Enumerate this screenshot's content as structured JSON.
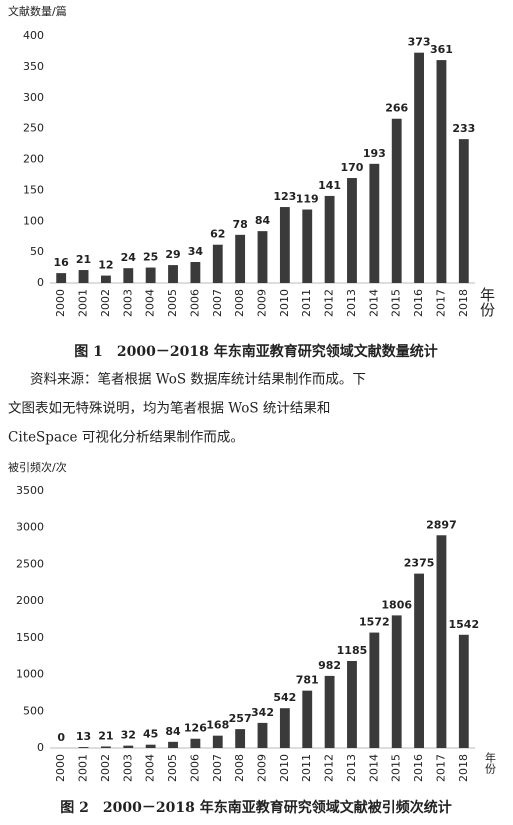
{
  "chart_data": [
    {
      "type": "bar",
      "title": "图 1　2000－2018 年东南亚教育研究领域文献数量统计",
      "y_label": "文献数量/篇",
      "x_label": "年份",
      "categories": [
        "2000",
        "2001",
        "2002",
        "2003",
        "2004",
        "2005",
        "2006",
        "2007",
        "2008",
        "2009",
        "2010",
        "2011",
        "2012",
        "2013",
        "2014",
        "2015",
        "2016",
        "2017",
        "2018"
      ],
      "values": [
        16,
        21,
        12,
        24,
        25,
        29,
        34,
        62,
        78,
        84,
        123,
        119,
        141,
        170,
        193,
        266,
        373,
        361,
        233
      ],
      "color": "#3a3a3a",
      "ylim": [
        0,
        400
      ],
      "yticks": [
        0,
        50,
        100,
        150,
        200,
        250,
        300,
        350,
        400
      ]
    },
    {
      "type": "bar",
      "title": "图 2　2000－2018 年东南亚教育研究领域文献被引频次统计",
      "y_label": "被引频次/次",
      "x_label": "年份",
      "categories": [
        "2000",
        "2001",
        "2002",
        "2003",
        "2004",
        "2005",
        "2006",
        "2007",
        "2008",
        "2009",
        "2010",
        "2011",
        "2012",
        "2013",
        "2014",
        "2015",
        "2016",
        "2017",
        "2018"
      ],
      "values": [
        0,
        13,
        21,
        32,
        45,
        84,
        126,
        168,
        257,
        342,
        542,
        781,
        982,
        1185,
        1572,
        1806,
        2375,
        2897,
        1542
      ],
      "color": "#3a3a3a",
      "ylim": [
        0,
        3500
      ],
      "yticks": [
        0,
        500,
        1000,
        1500,
        2000,
        2500,
        3000,
        3500
      ]
    }
  ],
  "paragraph": [
    "资料来源：笔者根据 WoS 数据库统计结果制作而成。下",
    "文图表如无特殊说明，均为笔者根据 WoS 统计结果和",
    "CiteSpace 可视化分析结果制作而成。"
  ]
}
